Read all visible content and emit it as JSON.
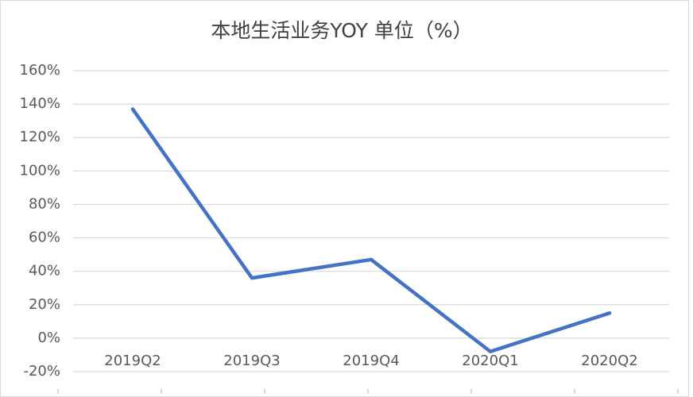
{
  "chart_data": {
    "type": "line",
    "title": "本地生活业务YOY 单位（%）",
    "categories": [
      "2019Q2",
      "2019Q3",
      "2019Q4",
      "2020Q1",
      "2020Q2"
    ],
    "series": [
      {
        "name": "YOY",
        "color": "#4472c4",
        "values": [
          137,
          36,
          47,
          -8,
          15
        ]
      }
    ],
    "ylim": [
      -20,
      160
    ],
    "yticks": [
      {
        "value": -20,
        "label": "-20%"
      },
      {
        "value": 0,
        "label": "0%"
      },
      {
        "value": 20,
        "label": "20%"
      },
      {
        "value": 40,
        "label": "40%"
      },
      {
        "value": 60,
        "label": "60%"
      },
      {
        "value": 80,
        "label": "80%"
      },
      {
        "value": 100,
        "label": "100%"
      },
      {
        "value": 120,
        "label": "120%"
      },
      {
        "value": 140,
        "label": "140%"
      },
      {
        "value": 160,
        "label": "160%"
      }
    ],
    "grid": true
  }
}
